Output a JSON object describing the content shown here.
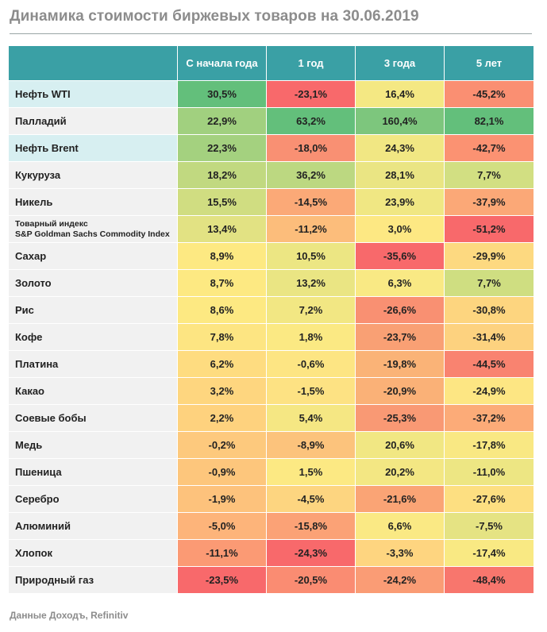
{
  "title": "Динамика стоимости биржевых товаров на 30.06.2019",
  "source": "Данные Доходъ, Refinitiv",
  "chart_data": {
    "type": "table",
    "columns": [
      "",
      "С начала года",
      "1 год",
      "3 года",
      "5 лет"
    ],
    "rows": [
      {
        "name": "Нефть WTI",
        "highlight": true,
        "values": [
          "30,5%",
          "-23,1%",
          "16,4%",
          "-45,2%"
        ],
        "colors": [
          "#63bf7b",
          "#f8696b",
          "#f4e883",
          "#fa8f72"
        ]
      },
      {
        "name": "Палладий",
        "highlight": false,
        "values": [
          "22,9%",
          "63,2%",
          "160,4%",
          "82,1%"
        ],
        "colors": [
          "#a1d07f",
          "#63bf7b",
          "#7dc67d",
          "#63bf7b"
        ]
      },
      {
        "name": "Нефть Brent",
        "highlight": true,
        "values": [
          "22,3%",
          "-18,0%",
          "24,3%",
          "-42,7%"
        ],
        "colors": [
          "#a4d17f",
          "#f99073",
          "#f1e783",
          "#fb9272"
        ]
      },
      {
        "name": "Кукуруза",
        "highlight": false,
        "values": [
          "18,2%",
          "36,2%",
          "28,1%",
          "7,7%"
        ],
        "colors": [
          "#c1d980",
          "#bcd881",
          "#eae583",
          "#d2df82"
        ]
      },
      {
        "name": "Никель",
        "highlight": false,
        "values": [
          "15,5%",
          "-14,5%",
          "23,9%",
          "-37,9%"
        ],
        "colors": [
          "#d0dd81",
          "#fba977",
          "#f0e783",
          "#fba877"
        ]
      },
      {
        "name": "Товарный индекс",
        "name2": "S&P Goldman Sachs Commodity Index",
        "highlight": false,
        "values": [
          "13,4%",
          "-11,2%",
          "3,0%",
          "-51,2%"
        ],
        "colors": [
          "#e2e283",
          "#fcbd7b",
          "#fde883",
          "#f8696b"
        ]
      },
      {
        "name": "Сахар",
        "highlight": false,
        "values": [
          "8,9%",
          "10,5%",
          "-35,6%",
          "-29,9%"
        ],
        "colors": [
          "#fde982",
          "#ece683",
          "#f8696b",
          "#fdd980"
        ]
      },
      {
        "name": "Золото",
        "highlight": false,
        "values": [
          "8,7%",
          "13,2%",
          "6,3%",
          "7,7%"
        ],
        "colors": [
          "#fde982",
          "#eae583",
          "#f9e984",
          "#cfde81"
        ]
      },
      {
        "name": "Рис",
        "highlight": false,
        "values": [
          "8,6%",
          "7,2%",
          "-26,6%",
          "-30,8%"
        ],
        "colors": [
          "#fde982",
          "#f2e783",
          "#f99072",
          "#fdd57f"
        ]
      },
      {
        "name": "Кофе",
        "highlight": false,
        "values": [
          "7,8%",
          "1,8%",
          "-23,7%",
          "-31,4%"
        ],
        "colors": [
          "#fde582",
          "#fbe983",
          "#f9a074",
          "#fdd27f"
        ]
      },
      {
        "name": "Платина",
        "highlight": false,
        "values": [
          "6,2%",
          "-0,6%",
          "-19,8%",
          "-44,5%"
        ],
        "colors": [
          "#fedc80",
          "#fde583",
          "#fab377",
          "#f98370"
        ]
      },
      {
        "name": "Какао",
        "highlight": false,
        "values": [
          "3,2%",
          "-1,5%",
          "-20,9%",
          "-24,9%"
        ],
        "colors": [
          "#fed67f",
          "#fde283",
          "#fab177",
          "#fde683"
        ]
      },
      {
        "name": "Соевые бобы",
        "highlight": false,
        "values": [
          "2,2%",
          "5,4%",
          "-25,3%",
          "-37,2%"
        ],
        "colors": [
          "#fed27e",
          "#f5e783",
          "#f99974",
          "#fcab78"
        ]
      },
      {
        "name": "Медь",
        "highlight": false,
        "values": [
          "-0,2%",
          "-8,9%",
          "20,6%",
          "-17,8%"
        ],
        "colors": [
          "#fdc97d",
          "#fcc37c",
          "#f1e783",
          "#f9e883"
        ]
      },
      {
        "name": "Пшеница",
        "highlight": false,
        "values": [
          "-0,9%",
          "1,5%",
          "20,2%",
          "-11,0%"
        ],
        "colors": [
          "#fdc67c",
          "#fce983",
          "#f3e783",
          "#ede683"
        ]
      },
      {
        "name": "Серебро",
        "highlight": false,
        "values": [
          "-1,9%",
          "-4,5%",
          "-21,6%",
          "-27,6%"
        ],
        "colors": [
          "#fdc27c",
          "#fdd580",
          "#faa475",
          "#fddf81"
        ]
      },
      {
        "name": "Алюминий",
        "highlight": false,
        "values": [
          "-5,0%",
          "-15,8%",
          "6,6%",
          "-7,5%"
        ],
        "colors": [
          "#fdb47a",
          "#fba276",
          "#fae984",
          "#e5e383"
        ]
      },
      {
        "name": "Хлопок",
        "highlight": false,
        "values": [
          "-11,1%",
          "-24,3%",
          "-3,3%",
          "-17,4%"
        ],
        "colors": [
          "#fb9a74",
          "#f8696b",
          "#fed580",
          "#f9e983"
        ]
      },
      {
        "name": "Природный газ",
        "highlight": false,
        "values": [
          "-23,5%",
          "-20,5%",
          "-24,2%",
          "-48,4%"
        ],
        "colors": [
          "#f8696b",
          "#fa8c72",
          "#fa9c75",
          "#f8766d"
        ]
      }
    ]
  }
}
